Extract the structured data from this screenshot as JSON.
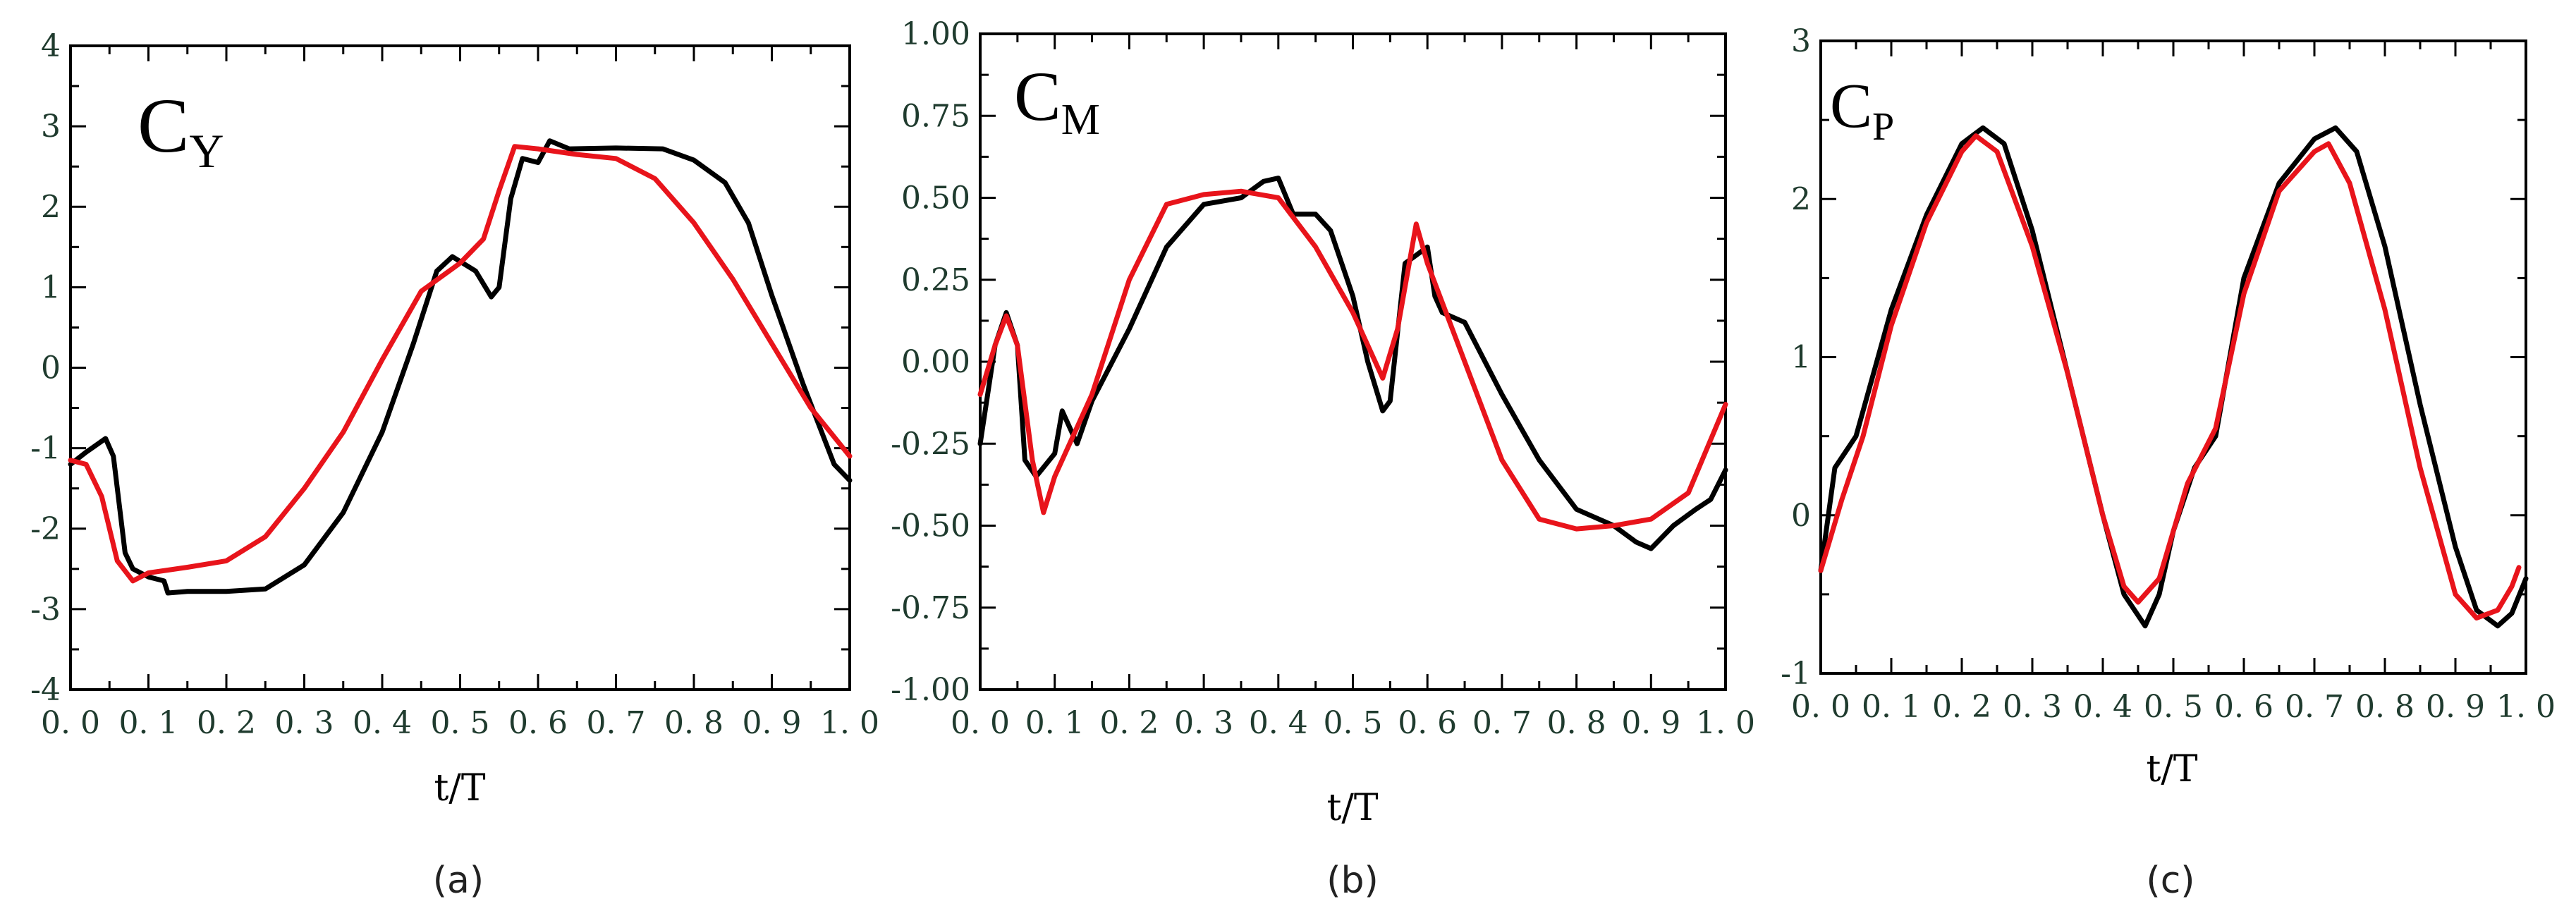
{
  "colors": {
    "black_series": "#000000",
    "red_series": "#e8141b",
    "axis": "#000000",
    "tick_text": "#1f3b2e"
  },
  "chart_data": [
    {
      "type": "line",
      "panel_caption": "(a)",
      "symbol_main": "C",
      "symbol_sub": "Y",
      "xlabel": "t/T",
      "ylabel": "",
      "xlim": [
        0.0,
        1.0
      ],
      "ylim": [
        -4,
        4
      ],
      "x_ticks": [
        0.0,
        0.1,
        0.2,
        0.3,
        0.4,
        0.5,
        0.6,
        0.7,
        0.8,
        0.9,
        1.0
      ],
      "x_tick_labels": [
        "0. 0",
        "0. 1",
        "0. 2",
        "0. 3",
        "0. 4",
        "0. 5",
        "0. 6",
        "0. 7",
        "0. 8",
        "0. 9",
        "1. 0"
      ],
      "y_ticks": [
        -4,
        -3,
        -2,
        -1,
        0,
        1,
        2,
        3,
        4
      ],
      "y_tick_labels": [
        "-4",
        "-3",
        "-2",
        "-1",
        "0",
        "1",
        "2",
        "3",
        "4"
      ],
      "series": [
        {
          "color": "black",
          "points": [
            [
              0.0,
              -1.2
            ],
            [
              0.02,
              -1.05
            ],
            [
              0.045,
              -0.88
            ],
            [
              0.055,
              -1.1
            ],
            [
              0.07,
              -2.3
            ],
            [
              0.08,
              -2.5
            ],
            [
              0.1,
              -2.6
            ],
            [
              0.12,
              -2.65
            ],
            [
              0.125,
              -2.8
            ],
            [
              0.15,
              -2.78
            ],
            [
              0.2,
              -2.78
            ],
            [
              0.25,
              -2.75
            ],
            [
              0.3,
              -2.45
            ],
            [
              0.35,
              -1.8
            ],
            [
              0.4,
              -0.8
            ],
            [
              0.44,
              0.3
            ],
            [
              0.47,
              1.2
            ],
            [
              0.49,
              1.38
            ],
            [
              0.52,
              1.2
            ],
            [
              0.54,
              0.88
            ],
            [
              0.55,
              1.0
            ],
            [
              0.565,
              2.1
            ],
            [
              0.58,
              2.6
            ],
            [
              0.6,
              2.55
            ],
            [
              0.615,
              2.82
            ],
            [
              0.64,
              2.72
            ],
            [
              0.7,
              2.73
            ],
            [
              0.76,
              2.72
            ],
            [
              0.8,
              2.58
            ],
            [
              0.84,
              2.3
            ],
            [
              0.87,
              1.8
            ],
            [
              0.9,
              0.9
            ],
            [
              0.94,
              -0.2
            ],
            [
              0.98,
              -1.2
            ],
            [
              1.0,
              -1.4
            ]
          ]
        },
        {
          "color": "red",
          "points": [
            [
              0.0,
              -1.15
            ],
            [
              0.02,
              -1.2
            ],
            [
              0.04,
              -1.6
            ],
            [
              0.06,
              -2.4
            ],
            [
              0.08,
              -2.65
            ],
            [
              0.1,
              -2.55
            ],
            [
              0.15,
              -2.48
            ],
            [
              0.2,
              -2.4
            ],
            [
              0.25,
              -2.1
            ],
            [
              0.3,
              -1.5
            ],
            [
              0.35,
              -0.8
            ],
            [
              0.4,
              0.1
            ],
            [
              0.45,
              0.95
            ],
            [
              0.5,
              1.3
            ],
            [
              0.53,
              1.6
            ],
            [
              0.55,
              2.2
            ],
            [
              0.57,
              2.75
            ],
            [
              0.6,
              2.72
            ],
            [
              0.65,
              2.65
            ],
            [
              0.7,
              2.6
            ],
            [
              0.75,
              2.35
            ],
            [
              0.8,
              1.8
            ],
            [
              0.85,
              1.1
            ],
            [
              0.9,
              0.3
            ],
            [
              0.95,
              -0.5
            ],
            [
              1.0,
              -1.1
            ]
          ]
        }
      ]
    },
    {
      "type": "line",
      "panel_caption": "(b)",
      "symbol_main": "C",
      "symbol_sub": "M",
      "xlabel": "t/T",
      "ylabel": "",
      "xlim": [
        0.0,
        1.0
      ],
      "ylim": [
        -1.0,
        1.0
      ],
      "x_ticks": [
        0.0,
        0.1,
        0.2,
        0.3,
        0.4,
        0.5,
        0.6,
        0.7,
        0.8,
        0.9,
        1.0
      ],
      "x_tick_labels": [
        "0. 0",
        "0. 1",
        "0. 2",
        "0. 3",
        "0. 4",
        "0. 5",
        "0. 6",
        "0. 7",
        "0. 8",
        "0. 9",
        "1. 0"
      ],
      "y_ticks": [
        -1.0,
        -0.75,
        -0.5,
        -0.25,
        0.0,
        0.25,
        0.5,
        0.75,
        1.0
      ],
      "y_tick_labels": [
        "-1.00",
        "-0.75",
        "-0.50",
        "-0.25",
        "0.00",
        "0.25",
        "0.50",
        "0.75",
        "1.00"
      ],
      "series": [
        {
          "color": "black",
          "points": [
            [
              0.0,
              -0.25
            ],
            [
              0.02,
              0.05
            ],
            [
              0.035,
              0.15
            ],
            [
              0.05,
              0.05
            ],
            [
              0.06,
              -0.3
            ],
            [
              0.075,
              -0.35
            ],
            [
              0.1,
              -0.28
            ],
            [
              0.11,
              -0.15
            ],
            [
              0.12,
              -0.2
            ],
            [
              0.13,
              -0.25
            ],
            [
              0.15,
              -0.12
            ],
            [
              0.2,
              0.1
            ],
            [
              0.25,
              0.35
            ],
            [
              0.3,
              0.48
            ],
            [
              0.35,
              0.5
            ],
            [
              0.38,
              0.55
            ],
            [
              0.4,
              0.56
            ],
            [
              0.42,
              0.45
            ],
            [
              0.45,
              0.45
            ],
            [
              0.47,
              0.4
            ],
            [
              0.5,
              0.2
            ],
            [
              0.52,
              0.0
            ],
            [
              0.54,
              -0.15
            ],
            [
              0.55,
              -0.12
            ],
            [
              0.57,
              0.3
            ],
            [
              0.6,
              0.35
            ],
            [
              0.61,
              0.2
            ],
            [
              0.62,
              0.15
            ],
            [
              0.65,
              0.12
            ],
            [
              0.7,
              -0.1
            ],
            [
              0.75,
              -0.3
            ],
            [
              0.8,
              -0.45
            ],
            [
              0.85,
              -0.5
            ],
            [
              0.88,
              -0.55
            ],
            [
              0.9,
              -0.57
            ],
            [
              0.93,
              -0.5
            ],
            [
              0.96,
              -0.45
            ],
            [
              0.98,
              -0.42
            ],
            [
              1.0,
              -0.33
            ]
          ]
        },
        {
          "color": "red",
          "points": [
            [
              0.0,
              -0.1
            ],
            [
              0.02,
              0.05
            ],
            [
              0.035,
              0.14
            ],
            [
              0.05,
              0.05
            ],
            [
              0.07,
              -0.3
            ],
            [
              0.085,
              -0.46
            ],
            [
              0.1,
              -0.35
            ],
            [
              0.15,
              -0.1
            ],
            [
              0.2,
              0.25
            ],
            [
              0.25,
              0.48
            ],
            [
              0.3,
              0.51
            ],
            [
              0.35,
              0.52
            ],
            [
              0.4,
              0.5
            ],
            [
              0.45,
              0.35
            ],
            [
              0.5,
              0.15
            ],
            [
              0.54,
              -0.05
            ],
            [
              0.56,
              0.1
            ],
            [
              0.585,
              0.42
            ],
            [
              0.6,
              0.3
            ],
            [
              0.65,
              0.0
            ],
            [
              0.7,
              -0.3
            ],
            [
              0.75,
              -0.48
            ],
            [
              0.8,
              -0.51
            ],
            [
              0.85,
              -0.5
            ],
            [
              0.9,
              -0.48
            ],
            [
              0.95,
              -0.4
            ],
            [
              1.0,
              -0.13
            ]
          ]
        }
      ]
    },
    {
      "type": "line",
      "panel_caption": "(c)",
      "symbol_main": "C",
      "symbol_sub": "P",
      "xlabel": "t/T",
      "ylabel": "",
      "xlim": [
        0.0,
        1.0
      ],
      "ylim": [
        -1,
        3
      ],
      "x_ticks": [
        0.0,
        0.1,
        0.2,
        0.3,
        0.4,
        0.5,
        0.6,
        0.7,
        0.8,
        0.9,
        1.0
      ],
      "x_tick_labels": [
        "0. 0",
        "0. 1",
        "0. 2",
        "0. 3",
        "0. 4",
        "0. 5",
        "0. 6",
        "0. 7",
        "0. 8",
        "0. 9",
        "1. 0"
      ],
      "y_ticks": [
        -1,
        0,
        1,
        2,
        3
      ],
      "y_tick_labels": [
        "-1",
        "0",
        "1",
        "2",
        "3"
      ],
      "series": [
        {
          "color": "black",
          "points": [
            [
              0.0,
              -0.35
            ],
            [
              0.02,
              0.3
            ],
            [
              0.05,
              0.5
            ],
            [
              0.1,
              1.3
            ],
            [
              0.15,
              1.9
            ],
            [
              0.2,
              2.35
            ],
            [
              0.23,
              2.45
            ],
            [
              0.26,
              2.35
            ],
            [
              0.3,
              1.8
            ],
            [
              0.35,
              0.9
            ],
            [
              0.4,
              0.0
            ],
            [
              0.43,
              -0.5
            ],
            [
              0.46,
              -0.7
            ],
            [
              0.48,
              -0.5
            ],
            [
              0.5,
              -0.1
            ],
            [
              0.53,
              0.3
            ],
            [
              0.56,
              0.5
            ],
            [
              0.6,
              1.5
            ],
            [
              0.65,
              2.1
            ],
            [
              0.7,
              2.38
            ],
            [
              0.73,
              2.45
            ],
            [
              0.76,
              2.3
            ],
            [
              0.8,
              1.7
            ],
            [
              0.85,
              0.7
            ],
            [
              0.9,
              -0.2
            ],
            [
              0.93,
              -0.6
            ],
            [
              0.96,
              -0.7
            ],
            [
              0.98,
              -0.62
            ],
            [
              1.0,
              -0.4
            ]
          ]
        },
        {
          "color": "red",
          "points": [
            [
              0.0,
              -0.35
            ],
            [
              0.03,
              0.1
            ],
            [
              0.06,
              0.5
            ],
            [
              0.1,
              1.2
            ],
            [
              0.15,
              1.85
            ],
            [
              0.2,
              2.3
            ],
            [
              0.22,
              2.4
            ],
            [
              0.25,
              2.3
            ],
            [
              0.3,
              1.7
            ],
            [
              0.35,
              0.9
            ],
            [
              0.4,
              0.0
            ],
            [
              0.43,
              -0.45
            ],
            [
              0.45,
              -0.55
            ],
            [
              0.48,
              -0.4
            ],
            [
              0.52,
              0.2
            ],
            [
              0.56,
              0.55
            ],
            [
              0.6,
              1.4
            ],
            [
              0.65,
              2.05
            ],
            [
              0.7,
              2.3
            ],
            [
              0.72,
              2.35
            ],
            [
              0.75,
              2.1
            ],
            [
              0.8,
              1.3
            ],
            [
              0.85,
              0.3
            ],
            [
              0.9,
              -0.5
            ],
            [
              0.93,
              -0.65
            ],
            [
              0.96,
              -0.6
            ],
            [
              0.98,
              -0.45
            ],
            [
              0.99,
              -0.33
            ]
          ]
        }
      ]
    }
  ]
}
